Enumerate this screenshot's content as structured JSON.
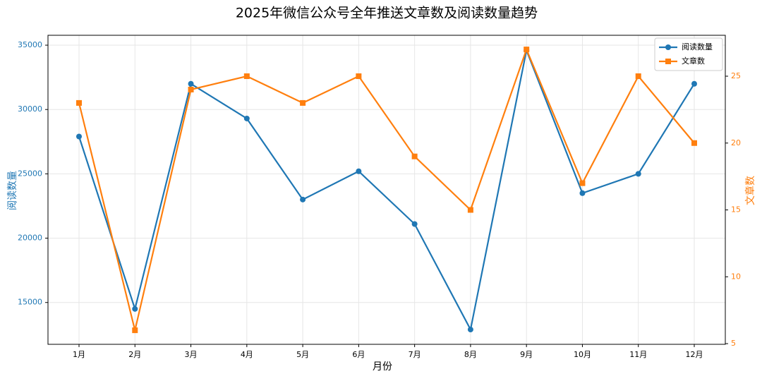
{
  "chart_data": {
    "type": "line",
    "title": "2025年微信公众号全年推送文章数及阅读数量趋势",
    "xlabel": "月份",
    "ylabel": "阅读数量",
    "y2label": "文章数",
    "categories": [
      "1月",
      "2月",
      "3月",
      "4月",
      "5月",
      "6月",
      "7月",
      "8月",
      "9月",
      "10月",
      "11月",
      "12月"
    ],
    "series": [
      {
        "name": "阅读数量",
        "color": "#1f77b4",
        "marker": "circle",
        "axis": "y",
        "values": [
          27900,
          14500,
          32000,
          29300,
          23000,
          25200,
          21100,
          12900,
          34600,
          23500,
          25000,
          32000
        ]
      },
      {
        "name": "文章数",
        "color": "#ff7f0e",
        "marker": "square",
        "axis": "y2",
        "values": [
          23,
          6,
          24,
          25,
          23,
          25,
          19,
          15,
          27,
          17,
          25,
          20
        ]
      }
    ],
    "ylim": [
      11750,
      35770
    ],
    "yticks": [
      15000,
      20000,
      25000,
      30000,
      35000
    ],
    "y2lim": [
      4.95,
      28.06
    ],
    "y2ticks": [
      5,
      10,
      15,
      20,
      25
    ],
    "grid": true,
    "legend": "upper right"
  }
}
